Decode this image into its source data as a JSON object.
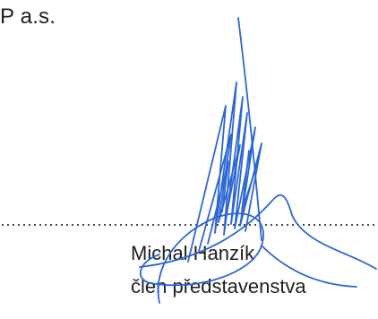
{
  "document": {
    "company_fragment": "P a.s.",
    "signer_name": "Michal Hanzík",
    "signer_role": "člen představenstva"
  },
  "signature": {
    "signatory": "Michal Hanzík",
    "ink_color": "#2e67d4"
  }
}
